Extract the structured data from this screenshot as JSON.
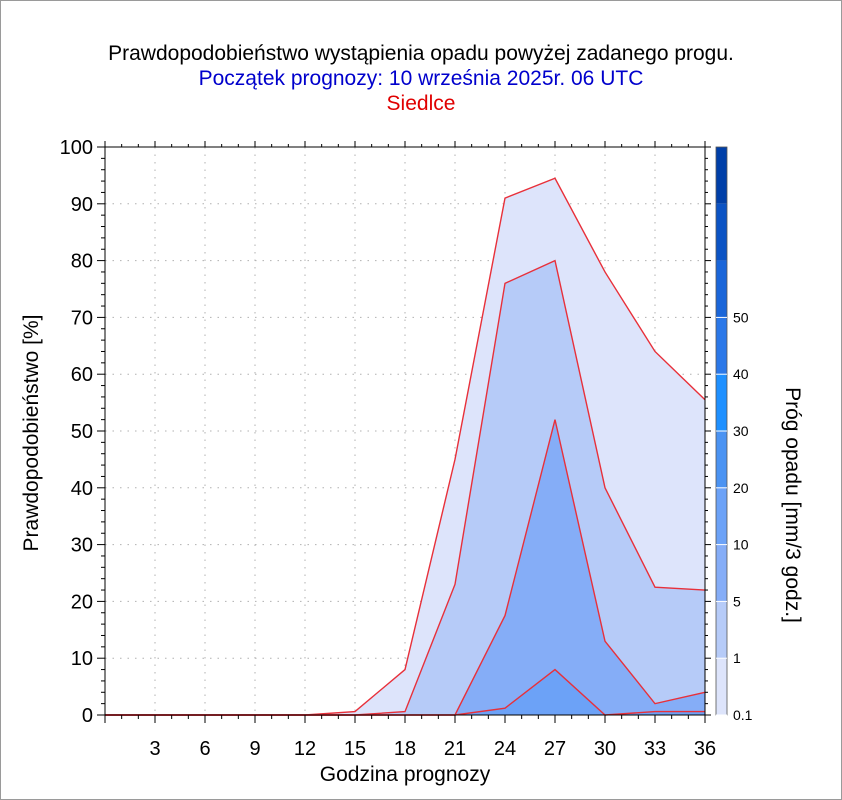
{
  "title": "Prawdopodobieństwo wystąpienia opadu powyżej zadanego progu.",
  "subtitle": "Początek prognozy: 10 września 2025r. 06 UTC",
  "station": "Siedlce",
  "colors": {
    "title": "#000000",
    "subtitle": "#0000cc",
    "station": "#e00000",
    "outline": "#e8303a",
    "band_0_1": "#dde4fb",
    "band_1": "#b6cbf8",
    "band_5": "#85adf7",
    "band_10": "#6ca2f7"
  },
  "chart_data": {
    "type": "area",
    "title": "Prawdopodobieństwo wystąpienia opadu powyżej zadanego progu.",
    "xlabel": "Godzina prognozy",
    "ylabel": "Prawdopodobieństwo [%]",
    "xlim": [
      0,
      36
    ],
    "ylim": [
      0,
      100
    ],
    "x_ticks": [
      3,
      6,
      9,
      12,
      15,
      18,
      21,
      24,
      27,
      30,
      33,
      36
    ],
    "y_ticks": [
      0,
      10,
      20,
      30,
      40,
      50,
      60,
      70,
      80,
      90,
      100
    ],
    "grid": true,
    "x": [
      0,
      3,
      6,
      9,
      12,
      15,
      18,
      21,
      24,
      27,
      30,
      33,
      36
    ],
    "series": [
      {
        "name": "0.1",
        "color": "#dde4fb",
        "values": [
          0,
          0,
          0,
          0,
          0,
          0.6,
          8,
          45,
          91,
          94.5,
          78,
          64,
          55.5
        ]
      },
      {
        "name": "1",
        "color": "#b6cbf8",
        "values": [
          0,
          0,
          0,
          0,
          0,
          0,
          0.6,
          23,
          76,
          80,
          40,
          22.5,
          22
        ]
      },
      {
        "name": "5",
        "color": "#85adf7",
        "values": [
          0,
          0,
          0,
          0,
          0,
          0,
          0,
          0,
          17.5,
          52,
          13,
          2,
          4
        ]
      },
      {
        "name": "10",
        "color": "#6ca2f7",
        "values": [
          0,
          0,
          0,
          0,
          0,
          0,
          0,
          0,
          1.2,
          8,
          0,
          0.6,
          0.6
        ]
      }
    ],
    "colorbar": {
      "label": "Próg opadu [mm/3 godz.]",
      "levels": [
        "0.1",
        "1",
        "5",
        "10",
        "20",
        "30",
        "40",
        "50"
      ],
      "colors": [
        "#dde4fb",
        "#b6cbf8",
        "#85adf7",
        "#6ca2f7",
        "#4b93f2",
        "#1e90ff",
        "#2b78e8",
        "#1a66d9",
        "#0b53c4",
        "#003fa8"
      ]
    }
  }
}
